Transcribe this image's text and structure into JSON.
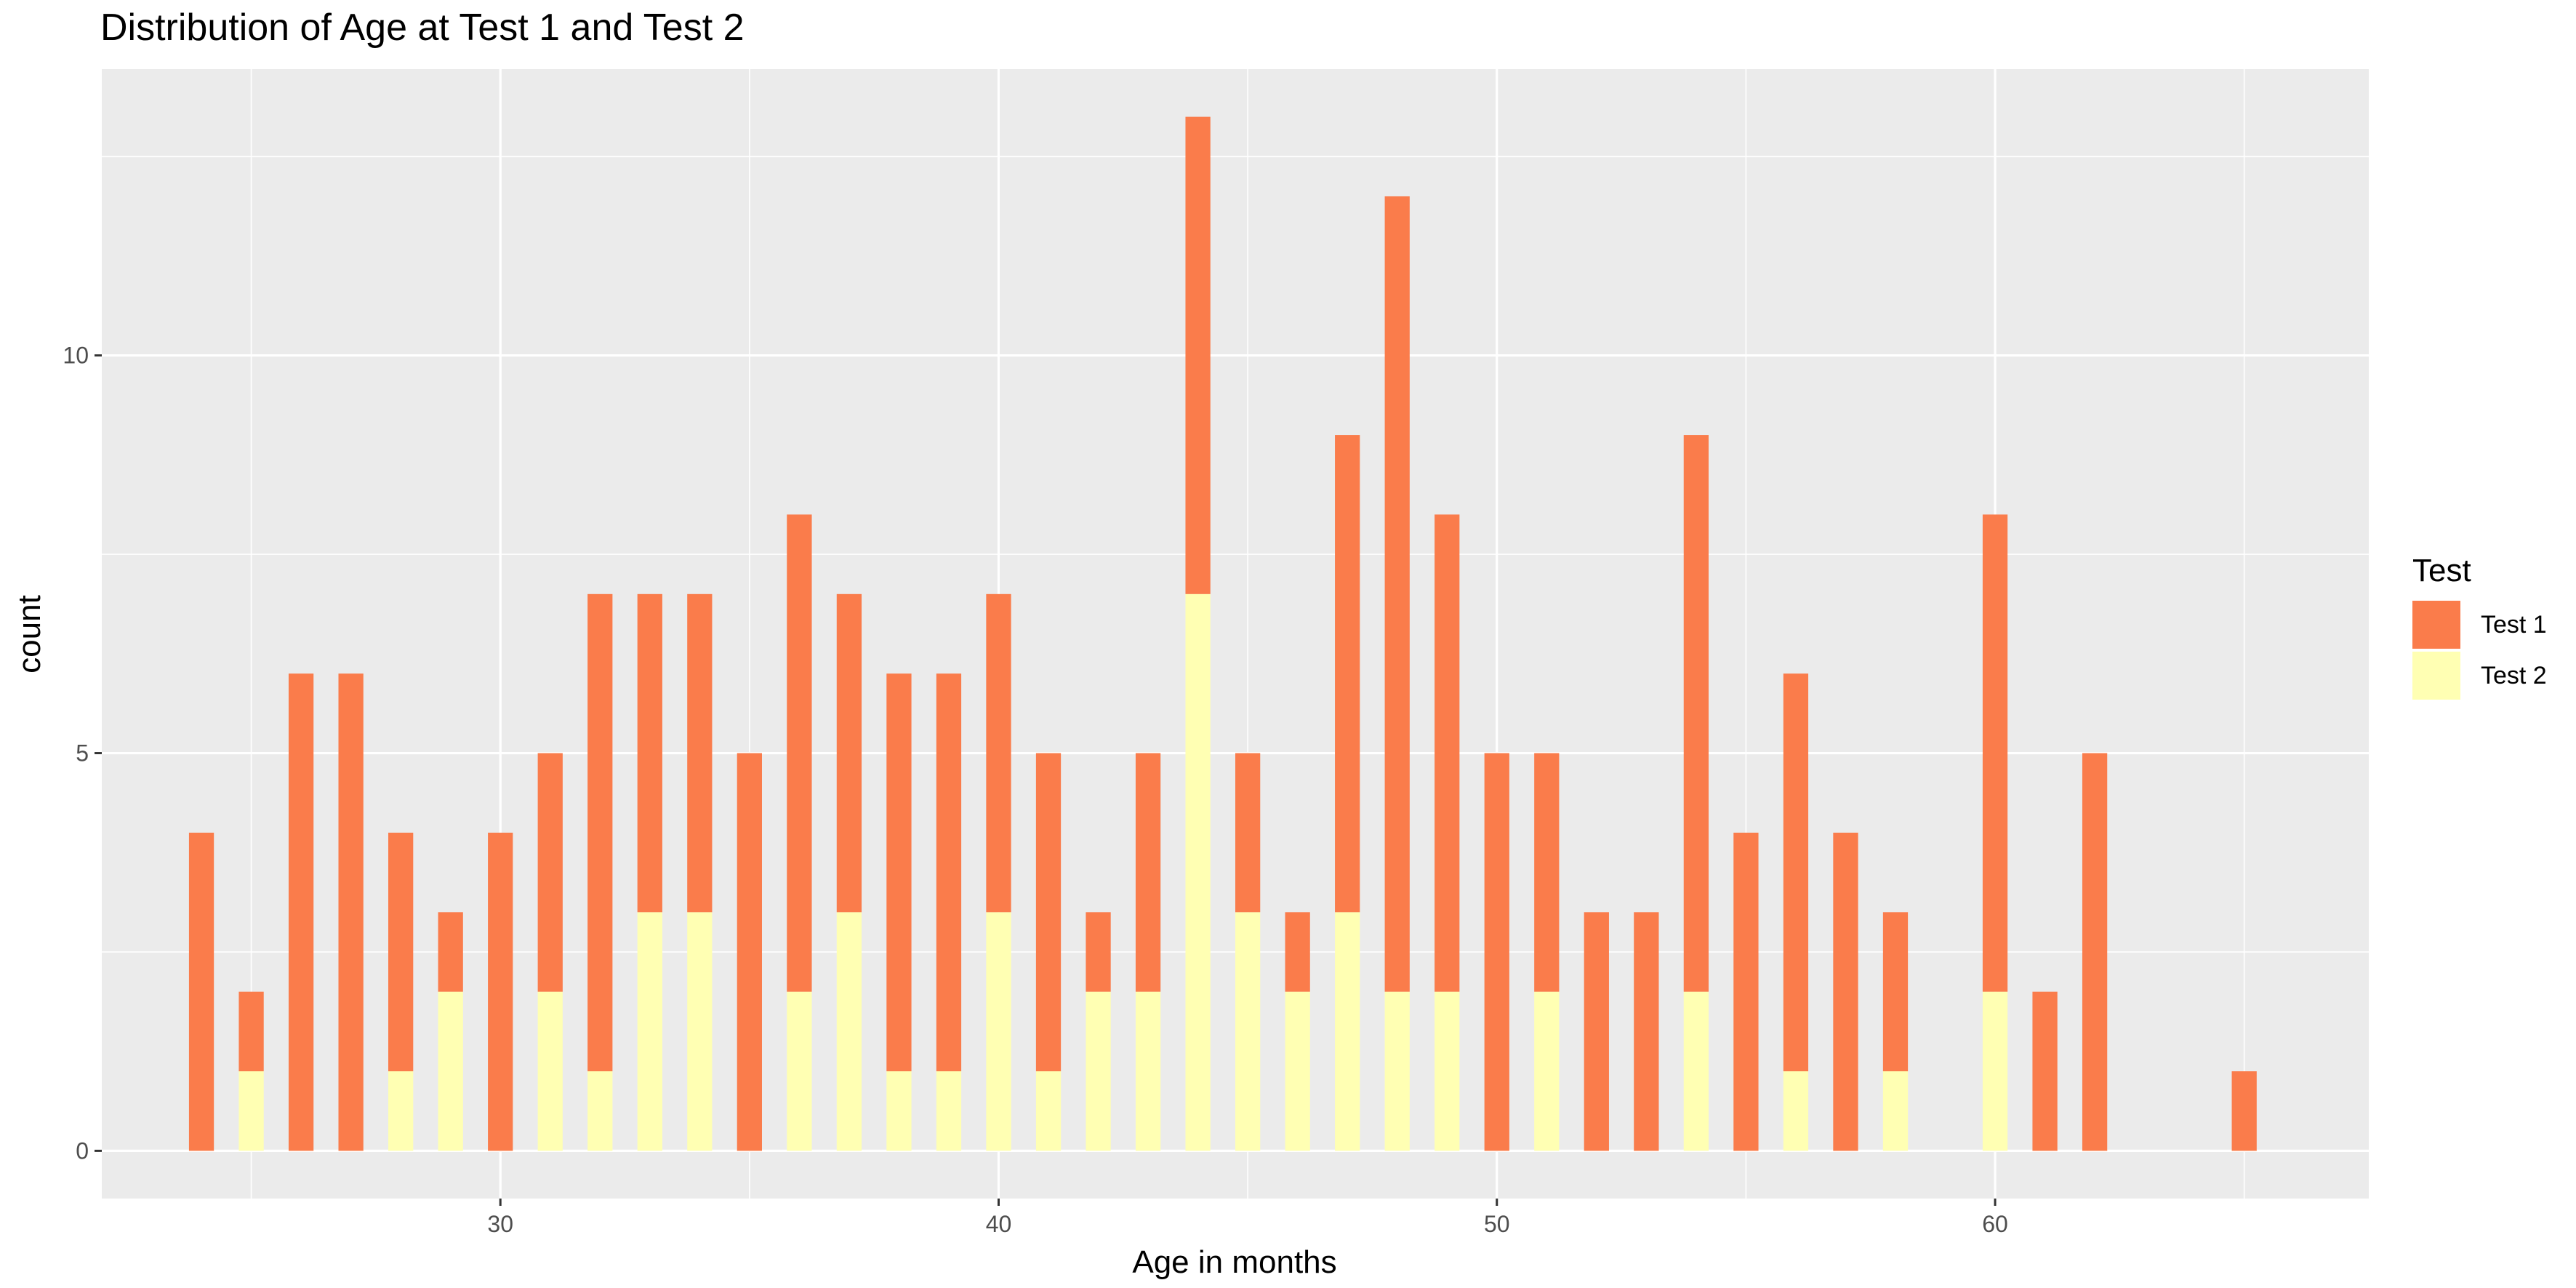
{
  "chart_data": {
    "type": "bar",
    "stacked": true,
    "title": "Distribution of Age at Test 1 and Test 2",
    "xlabel": "Age in months",
    "ylabel": "count",
    "xlim": [
      22,
      67.5
    ],
    "ylim": [
      -0.6,
      13.6
    ],
    "x_ticks": [
      30,
      40,
      50,
      60
    ],
    "y_ticks": [
      0,
      5,
      10
    ],
    "grid": true,
    "legend": {
      "title": "Test",
      "position": "right",
      "entries": [
        {
          "name": "Test 1",
          "color": "#fa7c4b"
        },
        {
          "name": "Test 2",
          "color": "#ffffb3"
        }
      ]
    },
    "x": [
      24,
      25,
      26,
      27,
      28,
      29,
      30,
      31,
      32,
      33,
      34,
      35,
      36,
      37,
      38,
      39,
      40,
      41,
      42,
      43,
      44,
      45,
      46,
      47,
      48,
      49,
      50,
      51,
      52,
      53,
      54,
      55,
      56,
      57,
      58,
      60,
      61,
      62,
      65
    ],
    "series": [
      {
        "name": "Test 1",
        "color": "#fa7c4b",
        "values": [
          4,
          1,
          6,
          6,
          3,
          1,
          4,
          3,
          6,
          4,
          4,
          5,
          6,
          4,
          5,
          5,
          4,
          4,
          1,
          3,
          6,
          2,
          1,
          6,
          10,
          6,
          5,
          3,
          3,
          3,
          7,
          4,
          5,
          4,
          2,
          6,
          2,
          5,
          1
        ]
      },
      {
        "name": "Test 2",
        "color": "#ffffb3",
        "values": [
          0,
          1,
          0,
          0,
          1,
          2,
          0,
          2,
          1,
          3,
          3,
          0,
          2,
          3,
          1,
          1,
          3,
          1,
          2,
          2,
          7,
          3,
          2,
          3,
          2,
          2,
          0,
          2,
          0,
          0,
          2,
          0,
          1,
          0,
          1,
          2,
          0,
          0,
          0
        ]
      }
    ]
  }
}
